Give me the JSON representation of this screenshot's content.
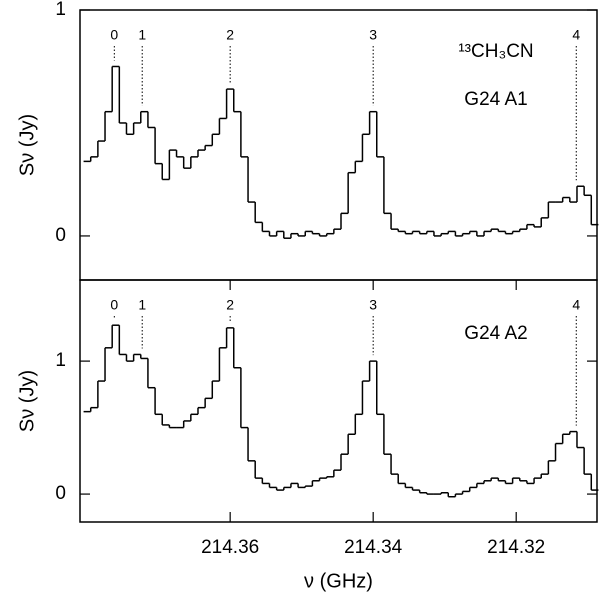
{
  "chart_data": [
    {
      "type": "step",
      "ylabel": "Sν (Jy)",
      "annotations": [
        "¹³CH₃CN",
        "G24 A1"
      ],
      "markers": [
        {
          "x": 214.3762,
          "label": "0"
        },
        {
          "x": 214.3723,
          "label": "1"
        },
        {
          "x": 214.36,
          "label": "2"
        },
        {
          "x": 214.34,
          "label": "3"
        },
        {
          "x": 214.3116,
          "label": "4"
        }
      ],
      "x": [
        214.38,
        214.379,
        214.378,
        214.377,
        214.376,
        214.375,
        214.374,
        214.373,
        214.372,
        214.371,
        214.37,
        214.369,
        214.368,
        214.367,
        214.366,
        214.365,
        214.364,
        214.363,
        214.362,
        214.361,
        214.36,
        214.359,
        214.358,
        214.357,
        214.356,
        214.355,
        214.354,
        214.353,
        214.352,
        214.351,
        214.35,
        214.349,
        214.348,
        214.347,
        214.346,
        214.345,
        214.344,
        214.343,
        214.342,
        214.341,
        214.34,
        214.339,
        214.338,
        214.337,
        214.336,
        214.335,
        214.334,
        214.333,
        214.332,
        214.331,
        214.33,
        214.329,
        214.328,
        214.327,
        214.326,
        214.325,
        214.324,
        214.323,
        214.322,
        214.321,
        214.32,
        214.319,
        214.318,
        214.317,
        214.316,
        214.315,
        214.314,
        214.313,
        214.312,
        214.311,
        214.31,
        214.309
      ],
      "series": [
        {
          "color": "#000000",
          "values": [
            0.33,
            0.35,
            0.42,
            0.55,
            0.75,
            0.5,
            0.45,
            0.5,
            0.55,
            0.48,
            0.32,
            0.25,
            0.38,
            0.35,
            0.3,
            0.35,
            0.38,
            0.4,
            0.45,
            0.52,
            0.65,
            0.55,
            0.35,
            0.15,
            0.06,
            0.02,
            0.0,
            0.02,
            -0.01,
            0.01,
            0.0,
            0.02,
            0.01,
            0.0,
            0.01,
            0.03,
            0.1,
            0.28,
            0.33,
            0.45,
            0.55,
            0.35,
            0.1,
            0.03,
            0.02,
            0.01,
            0.02,
            0.01,
            0.02,
            0.0,
            0.01,
            0.02,
            0.0,
            0.01,
            0.02,
            0.0,
            0.02,
            0.03,
            0.02,
            0.01,
            0.02,
            0.03,
            0.05,
            0.04,
            0.08,
            0.15,
            0.15,
            0.17,
            0.15,
            0.22,
            0.18,
            0.05
          ]
        }
      ],
      "xlim": [
        214.381,
        214.3087
      ],
      "ylim": [
        -0.195,
        1
      ],
      "yticks": [
        0,
        1
      ]
    },
    {
      "type": "step",
      "ylabel": "Sν (Jy)",
      "xlabel": "ν (GHz)",
      "annotations": [
        "G24 A2"
      ],
      "markers": [
        {
          "x": 214.3762,
          "label": "0"
        },
        {
          "x": 214.3723,
          "label": "1"
        },
        {
          "x": 214.36,
          "label": "2"
        },
        {
          "x": 214.34,
          "label": "3"
        },
        {
          "x": 214.3116,
          "label": "4"
        }
      ],
      "x": [
        214.38,
        214.379,
        214.378,
        214.377,
        214.376,
        214.375,
        214.374,
        214.373,
        214.372,
        214.371,
        214.37,
        214.369,
        214.368,
        214.367,
        214.366,
        214.365,
        214.364,
        214.363,
        214.362,
        214.361,
        214.36,
        214.359,
        214.358,
        214.357,
        214.356,
        214.355,
        214.354,
        214.353,
        214.352,
        214.351,
        214.35,
        214.349,
        214.348,
        214.347,
        214.346,
        214.345,
        214.344,
        214.343,
        214.342,
        214.341,
        214.34,
        214.339,
        214.338,
        214.337,
        214.336,
        214.335,
        214.334,
        214.333,
        214.332,
        214.331,
        214.33,
        214.329,
        214.328,
        214.327,
        214.326,
        214.325,
        214.324,
        214.323,
        214.322,
        214.321,
        214.32,
        214.319,
        214.318,
        214.317,
        214.316,
        214.315,
        214.314,
        214.313,
        214.312,
        214.311,
        214.31,
        214.309
      ],
      "series": [
        {
          "color": "#000000",
          "values": [
            0.62,
            0.65,
            0.85,
            1.1,
            1.27,
            1.05,
            1.0,
            1.05,
            1.02,
            0.8,
            0.6,
            0.52,
            0.5,
            0.5,
            0.55,
            0.6,
            0.65,
            0.72,
            0.85,
            1.1,
            1.25,
            0.95,
            0.5,
            0.25,
            0.12,
            0.08,
            0.05,
            0.03,
            0.05,
            0.08,
            0.05,
            0.06,
            0.1,
            0.12,
            0.13,
            0.18,
            0.3,
            0.45,
            0.6,
            0.85,
            1.0,
            0.6,
            0.3,
            0.15,
            0.08,
            0.05,
            0.03,
            0.01,
            0.0,
            0.0,
            0.01,
            -0.02,
            0.0,
            0.02,
            0.05,
            0.08,
            0.1,
            0.12,
            0.1,
            0.08,
            0.12,
            0.1,
            0.08,
            0.12,
            0.15,
            0.25,
            0.38,
            0.45,
            0.47,
            0.35,
            0.15,
            0.03
          ]
        }
      ],
      "xlim": [
        214.381,
        214.3087
      ],
      "ylim": [
        -0.21,
        1.61
      ],
      "yticks": [
        0,
        1
      ],
      "xticks": [
        214.36,
        214.34,
        214.32
      ]
    }
  ]
}
